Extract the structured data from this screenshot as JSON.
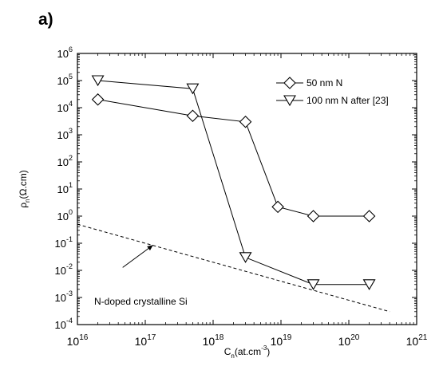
{
  "panel_label": "a)",
  "chart_data": {
    "type": "scatter",
    "x_scale": "log",
    "y_scale": "log",
    "xlim": [
      1e+16,
      1e+21
    ],
    "ylim": [
      0.0001,
      1000000.0
    ],
    "x_ticks": [
      1e+16,
      1e+17,
      1e+18,
      1e+19,
      1e+20,
      1e+21
    ],
    "y_ticks": [
      0.0001,
      0.001,
      0.01,
      0.1,
      1.0,
      10.0,
      100.0,
      1000.0,
      10000.0,
      100000.0,
      1000000.0
    ],
    "xlabel": {
      "base": "C",
      "sub": "n",
      "rest": "(at.cm",
      "sup": "-3",
      "end": ")"
    },
    "ylabel": {
      "base": "ρ",
      "sub": "n",
      "rest": "(Ω.cm)"
    },
    "grid": false,
    "legend_position": "top-right",
    "series": [
      {
        "name": "50 nm N",
        "marker": "diamond",
        "color": "#000000",
        "x": [
          2e+16,
          5e+17,
          3e+18,
          9e+18,
          3e+19,
          2e+20
        ],
        "y": [
          20000,
          5000,
          3000,
          2.2,
          1.0,
          1.0
        ]
      },
      {
        "name": "100 nm N after [23]",
        "marker": "triangle-down",
        "color": "#000000",
        "x": [
          2e+16,
          5e+17,
          3e+18,
          3e+19,
          2e+20
        ],
        "y": [
          100000,
          50000,
          0.03,
          0.003,
          0.003
        ]
      }
    ],
    "reference_line": {
      "style": "dashed",
      "x": [
        1e+16,
        4e+20
      ],
      "y": [
        0.5,
        0.0003
      ]
    },
    "annotation": {
      "text": "N-doped crystalline Si",
      "arrow_tip": [
        1.3e+17,
        0.085
      ]
    }
  }
}
